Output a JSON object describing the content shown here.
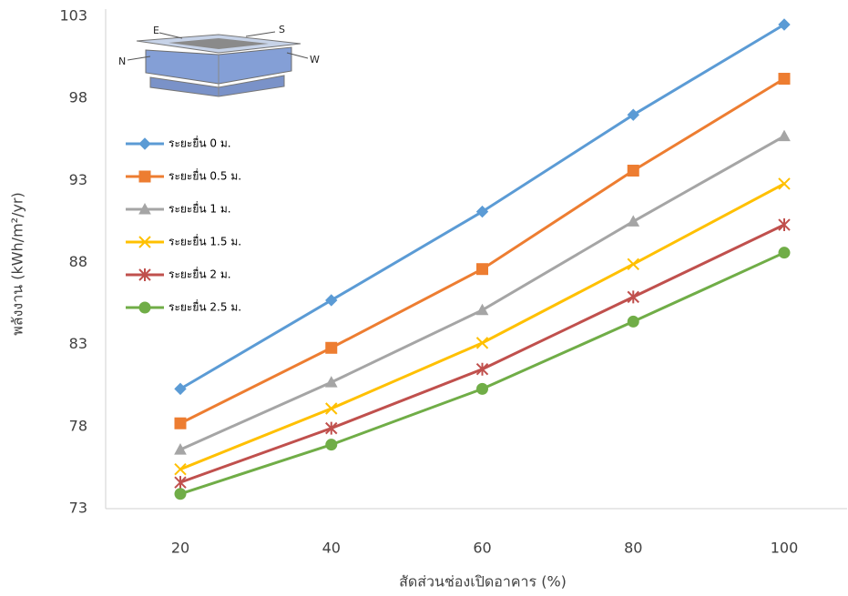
{
  "chart_data": {
    "type": "line",
    "x_label": "สัดส่วนช่องเปิดอาคาร (%)",
    "y_label": "พลังงาน (kWh/m²/yr)",
    "categories": [
      "20",
      "40",
      "60",
      "80",
      "100"
    ],
    "ylim": [
      73,
      103
    ],
    "yticks": [
      73,
      78,
      83,
      88,
      93,
      98,
      103
    ],
    "grid": false,
    "inset_labels": [
      "E",
      "S",
      "N",
      "W"
    ],
    "series": [
      {
        "name": "ระยะยื่น 0 ม.",
        "color": "#5b9bd5",
        "marker": "diamond",
        "values": [
          80.3,
          85.7,
          91.1,
          97.0,
          102.5
        ]
      },
      {
        "name": "ระยะยื่น 0.5 ม.",
        "color": "#ed7d31",
        "marker": "square",
        "values": [
          78.2,
          82.8,
          87.6,
          93.6,
          99.2
        ]
      },
      {
        "name": "ระยะยื่น 1 ม.",
        "color": "#a5a5a5",
        "marker": "triangle",
        "values": [
          76.6,
          80.7,
          85.1,
          90.5,
          95.7
        ]
      },
      {
        "name": "ระยะยื่น 1.5 ม.",
        "color": "#ffc000",
        "marker": "x",
        "values": [
          75.4,
          79.1,
          83.1,
          87.9,
          92.8
        ]
      },
      {
        "name": "ระยะยื่น 2 ม.",
        "color": "#c0504d",
        "marker": "star",
        "values": [
          74.6,
          77.9,
          81.5,
          85.9,
          90.3
        ]
      },
      {
        "name": "ระยะยื่น 2.5 ม.",
        "color": "#70ad47",
        "marker": "circle",
        "values": [
          73.9,
          76.9,
          80.3,
          84.4,
          88.6
        ]
      }
    ]
  }
}
